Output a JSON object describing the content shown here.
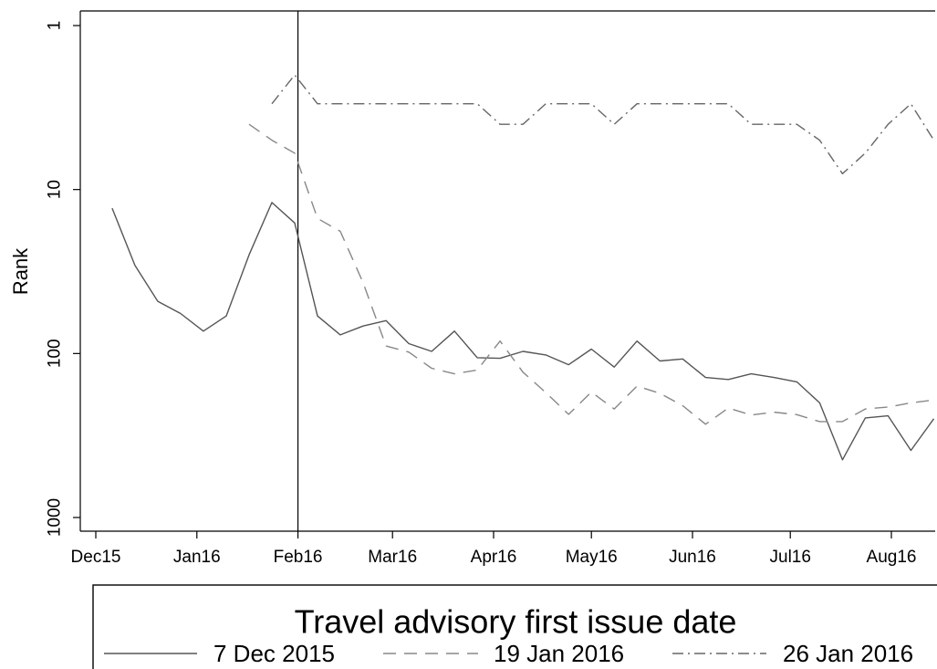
{
  "chart_data": {
    "type": "line",
    "title": "",
    "xlabel": "",
    "ylabel": "Rank",
    "yscale": "log",
    "y_reversed": true,
    "ylim": [
      1,
      1000
    ],
    "y_ticks": [
      {
        "value": 1,
        "label": "1"
      },
      {
        "value": 10,
        "label": "10"
      },
      {
        "value": 100,
        "label": "100"
      },
      {
        "value": 1000,
        "label": "1000"
      }
    ],
    "x_ticks": [
      {
        "date": "2015-12-01",
        "label": "Dec15"
      },
      {
        "date": "2016-01-01",
        "label": "Jan16"
      },
      {
        "date": "2016-02-01",
        "label": "Feb16"
      },
      {
        "date": "2016-03-01",
        "label": "Mar16"
      },
      {
        "date": "2016-04-01",
        "label": "Apr16"
      },
      {
        "date": "2016-05-01",
        "label": "May16"
      },
      {
        "date": "2016-06-01",
        "label": "Jun16"
      },
      {
        "date": "2016-07-01",
        "label": "Jul16"
      },
      {
        "date": "2016-08-01",
        "label": "Aug16"
      }
    ],
    "xlim": [
      "2015-11-26",
      "2016-08-15"
    ],
    "vline": "2016-02-01",
    "grid": false,
    "legend": {
      "title": "Travel advisory first issue date",
      "position": "bottom"
    },
    "series": [
      {
        "name": "7 Dec 2015",
        "style": "solid",
        "color": "#555555",
        "x": [
          "2015-12-06",
          "2015-12-13",
          "2015-12-20",
          "2015-12-27",
          "2016-01-03",
          "2016-01-10",
          "2016-01-17",
          "2016-01-24",
          "2016-01-31",
          "2016-02-07",
          "2016-02-14",
          "2016-02-21",
          "2016-02-28",
          "2016-03-06",
          "2016-03-13",
          "2016-03-20",
          "2016-03-27",
          "2016-04-03",
          "2016-04-10",
          "2016-04-17",
          "2016-04-24",
          "2016-05-01",
          "2016-05-08",
          "2016-05-15",
          "2016-05-22",
          "2016-05-29",
          "2016-06-05",
          "2016-06-12",
          "2016-06-19",
          "2016-06-26",
          "2016-07-03",
          "2016-07-10",
          "2016-07-17",
          "2016-07-24",
          "2016-07-31",
          "2016-08-07",
          "2016-08-14"
        ],
        "y": [
          13,
          29,
          48,
          57,
          73,
          59,
          25,
          12,
          16,
          59,
          77,
          68,
          63,
          87,
          97,
          73,
          106,
          107,
          97,
          102,
          117,
          94,
          121,
          84,
          111,
          108,
          140,
          144,
          133,
          140,
          149,
          200,
          445,
          247,
          240,
          390,
          250
        ]
      },
      {
        "name": "19 Jan 2016",
        "style": "dashed",
        "color": "#888888",
        "x": [
          "2016-01-17",
          "2016-01-24",
          "2016-01-31",
          "2016-02-07",
          "2016-02-14",
          "2016-02-21",
          "2016-02-28",
          "2016-03-06",
          "2016-03-13",
          "2016-03-20",
          "2016-03-27",
          "2016-04-03",
          "2016-04-10",
          "2016-04-17",
          "2016-04-24",
          "2016-05-01",
          "2016-05-08",
          "2016-05-15",
          "2016-05-22",
          "2016-05-29",
          "2016-06-05",
          "2016-06-12",
          "2016-06-19",
          "2016-06-26",
          "2016-07-03",
          "2016-07-10",
          "2016-07-17",
          "2016-07-24",
          "2016-07-31",
          "2016-08-07",
          "2016-08-14"
        ],
        "y": [
          4,
          5,
          6,
          15,
          18,
          37,
          90,
          98,
          123,
          133,
          126,
          84,
          130,
          173,
          235,
          172,
          218,
          158,
          175,
          208,
          270,
          215,
          237,
          228,
          236,
          260,
          260,
          218,
          212,
          200,
          192
        ]
      },
      {
        "name": "26 Jan 2016",
        "style": "dashdot",
        "color": "#666666",
        "x": [
          "2016-01-24",
          "2016-01-31",
          "2016-02-07",
          "2016-02-14",
          "2016-02-21",
          "2016-02-28",
          "2016-03-06",
          "2016-03-13",
          "2016-03-20",
          "2016-03-27",
          "2016-04-03",
          "2016-04-10",
          "2016-04-17",
          "2016-04-24",
          "2016-05-01",
          "2016-05-08",
          "2016-05-15",
          "2016-05-22",
          "2016-05-29",
          "2016-06-05",
          "2016-06-12",
          "2016-06-19",
          "2016-06-26",
          "2016-07-03",
          "2016-07-10",
          "2016-07-17",
          "2016-07-24",
          "2016-07-31",
          "2016-08-07",
          "2016-08-14"
        ],
        "y": [
          3,
          2,
          3,
          3,
          3,
          3,
          3,
          3,
          3,
          3,
          4,
          4,
          3,
          3,
          3,
          4,
          3,
          3,
          3,
          3,
          3,
          4,
          4,
          4,
          5,
          8,
          6,
          4,
          3,
          5
        ]
      }
    ]
  }
}
